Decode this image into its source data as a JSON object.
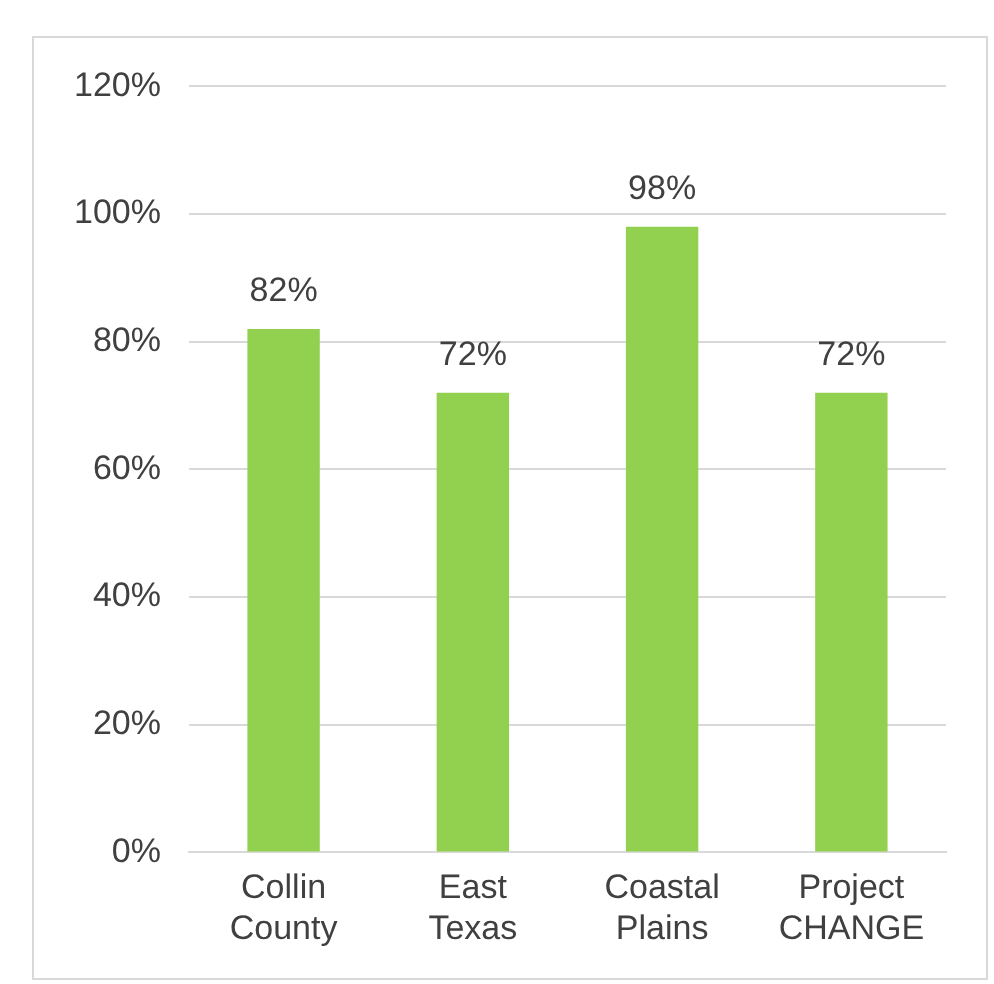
{
  "chart_data": {
    "type": "bar",
    "categories": [
      "Collin County",
      "East Texas",
      "Coastal Plains",
      "Project CHANGE"
    ],
    "values": [
      82,
      72,
      98,
      72
    ],
    "color": "#92d050",
    "ylim": [
      0,
      120
    ],
    "yticks": [
      {
        "value": 0,
        "label": "0%"
      },
      {
        "value": 20,
        "label": "20%"
      },
      {
        "value": 40,
        "label": "40%"
      },
      {
        "value": 60,
        "label": "60%"
      },
      {
        "value": 80,
        "label": "80%"
      },
      {
        "value": 100,
        "label": "100%"
      },
      {
        "value": 120,
        "label": "120%"
      }
    ],
    "grid": "y",
    "data_labels": true,
    "value_labels": [
      "82%",
      "72%",
      "98%",
      "72%"
    ],
    "legend": false
  }
}
